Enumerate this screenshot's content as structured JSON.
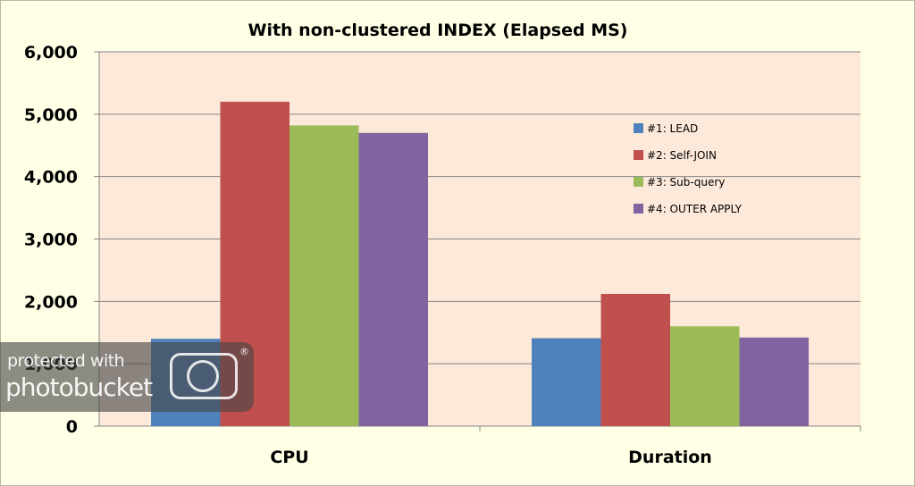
{
  "chart_data": {
    "type": "bar",
    "title": "With non-clustered INDEX (Elapsed MS)",
    "categories": [
      "CPU",
      "Duration"
    ],
    "series": [
      {
        "name": "#1: LEAD",
        "color": "#4f81bd",
        "values": [
          1400,
          1410
        ]
      },
      {
        "name": "#2: Self-JOIN",
        "color": "#c0504d",
        "values": [
          5200,
          2120
        ]
      },
      {
        "name": "#3: Sub-query",
        "color": "#9bbb59",
        "values": [
          4820,
          1600
        ]
      },
      {
        "name": "#4: OUTER APPLY",
        "color": "#8064a2",
        "values": [
          4700,
          1420
        ]
      }
    ],
    "ylim": [
      0,
      6000
    ],
    "yticks": [
      "0",
      "1,000",
      "2,000",
      "3,000",
      "4,000",
      "5,000",
      "6,000"
    ],
    "grid": true,
    "legend_position": "right",
    "plot_background": "#fde9d9",
    "chart_background": "#ffffe6"
  },
  "watermark": {
    "line1": "protected with",
    "line2": "photobucket",
    "mark": "®",
    "icon": "camera-icon"
  }
}
